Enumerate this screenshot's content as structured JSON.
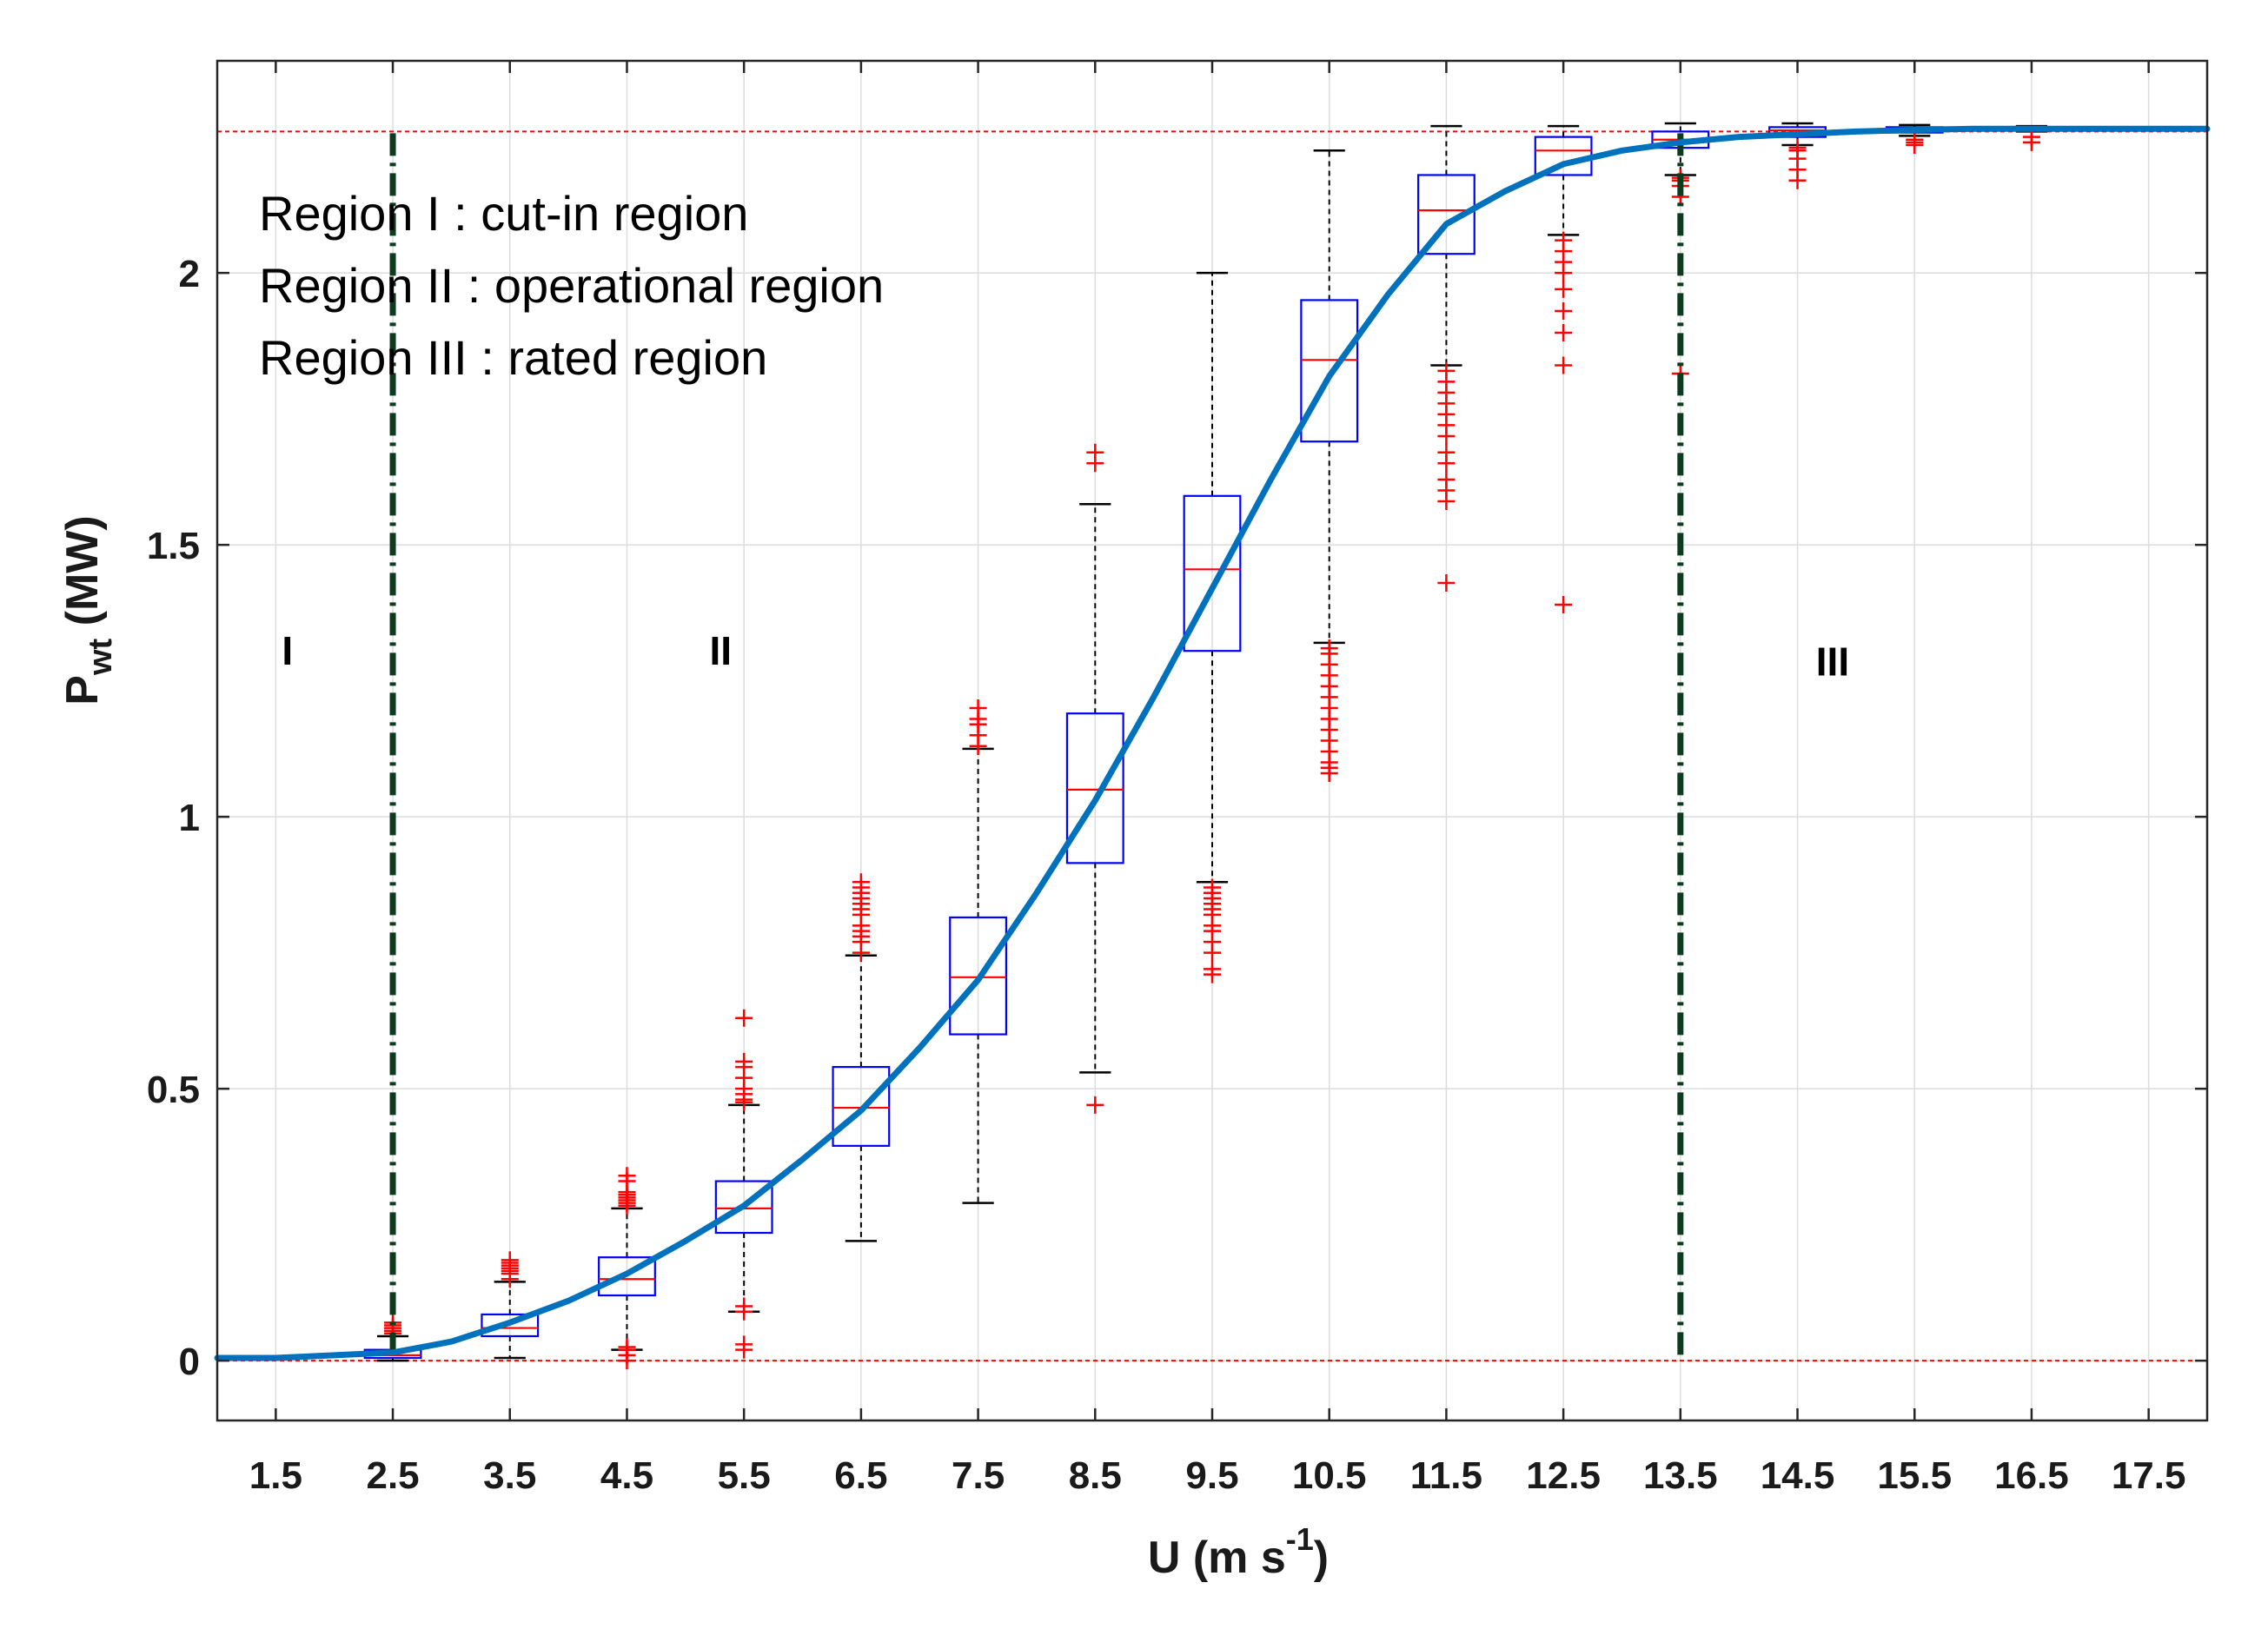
{
  "chart_data": {
    "type": "box",
    "xlabel": {
      "main": "U (m s",
      "sup": "-1",
      "close": ")"
    },
    "ylabel": {
      "main": "P",
      "sub": "wt",
      "rest": " (MW)"
    },
    "xlim": [
      1.0,
      18.0
    ],
    "ylim": [
      -0.11,
      2.39
    ],
    "x_ticks": [
      "1.5",
      "2.5",
      "3.5",
      "4.5",
      "5.5",
      "6.5",
      "7.5",
      "8.5",
      "9.5",
      "10.5",
      "11.5",
      "12.5",
      "13.5",
      "14.5",
      "15.5",
      "16.5",
      "17.5"
    ],
    "y_ticks": [
      "0",
      "0.5",
      "1",
      "1.5",
      "2"
    ],
    "rated_power": 2.26,
    "zero_line": 0,
    "region_boundaries": [
      2.5,
      13.5
    ],
    "regions": [
      {
        "label": "I",
        "x": 1.6,
        "y": 1.28
      },
      {
        "label": "II",
        "x": 5.3,
        "y": 1.28
      },
      {
        "label": "III",
        "x": 14.8,
        "y": 1.26
      }
    ],
    "legend_lines": [
      "Region I : cut-in region",
      "Region II : operational region",
      "Region III : rated region"
    ],
    "boxes": [
      {
        "x": 2.5,
        "q1": 0.005,
        "median": 0.01,
        "q3": 0.02,
        "whisker_low": 0.0,
        "whisker_high": 0.045,
        "outliers": [
          0.05,
          0.055,
          0.06,
          0.065,
          0.07
        ]
      },
      {
        "x": 3.5,
        "q1": 0.045,
        "median": 0.06,
        "q3": 0.085,
        "whisker_low": 0.005,
        "whisker_high": 0.145,
        "outliers": [
          0.15,
          0.16,
          0.165,
          0.17,
          0.175,
          0.18,
          0.185
        ]
      },
      {
        "x": 4.5,
        "q1": 0.12,
        "median": 0.15,
        "q3": 0.19,
        "whisker_low": 0.02,
        "whisker_high": 0.28,
        "outliers": [
          0.0,
          0.01,
          0.02,
          0.025,
          0.285,
          0.29,
          0.295,
          0.3,
          0.305,
          0.31,
          0.33,
          0.34
        ]
      },
      {
        "x": 5.5,
        "q1": 0.235,
        "median": 0.28,
        "q3": 0.33,
        "whisker_low": 0.09,
        "whisker_high": 0.47,
        "outliers": [
          0.02,
          0.03,
          0.09,
          0.1,
          0.475,
          0.48,
          0.49,
          0.5,
          0.52,
          0.54,
          0.55,
          0.63
        ]
      },
      {
        "x": 6.5,
        "q1": 0.395,
        "median": 0.465,
        "q3": 0.54,
        "whisker_low": 0.22,
        "whisker_high": 0.745,
        "outliers": [
          0.75,
          0.77,
          0.78,
          0.79,
          0.8,
          0.82,
          0.83,
          0.84,
          0.85,
          0.86,
          0.87,
          0.88
        ]
      },
      {
        "x": 7.5,
        "q1": 0.6,
        "median": 0.705,
        "q3": 0.815,
        "whisker_low": 0.29,
        "whisker_high": 1.125,
        "outliers": [
          1.13,
          1.15,
          1.17,
          1.18,
          1.2
        ]
      },
      {
        "x": 8.5,
        "q1": 0.915,
        "median": 1.05,
        "q3": 1.19,
        "whisker_low": 0.53,
        "whisker_high": 1.575,
        "outliers": [
          0.47,
          1.65,
          1.67
        ]
      },
      {
        "x": 9.5,
        "q1": 1.305,
        "median": 1.455,
        "q3": 1.59,
        "whisker_low": 0.88,
        "whisker_high": 2.0,
        "outliers": [
          0.71,
          0.72,
          0.75,
          0.77,
          0.79,
          0.8,
          0.82,
          0.83,
          0.84,
          0.85,
          0.86,
          0.87
        ]
      },
      {
        "x": 10.5,
        "q1": 1.69,
        "median": 1.84,
        "q3": 1.95,
        "whisker_low": 1.32,
        "whisker_high": 2.225,
        "outliers": [
          1.08,
          1.09,
          1.1,
          1.12,
          1.14,
          1.16,
          1.18,
          1.2,
          1.22,
          1.24,
          1.26,
          1.28,
          1.3,
          1.31
        ]
      },
      {
        "x": 11.5,
        "q1": 2.035,
        "median": 2.115,
        "q3": 2.18,
        "whisker_low": 1.83,
        "whisker_high": 2.27,
        "outliers": [
          1.43,
          1.58,
          1.6,
          1.62,
          1.65,
          1.67,
          1.7,
          1.72,
          1.74,
          1.76,
          1.78,
          1.8,
          1.82
        ]
      },
      {
        "x": 12.5,
        "q1": 2.18,
        "median": 2.225,
        "q3": 2.25,
        "whisker_low": 2.07,
        "whisker_high": 2.27,
        "outliers": [
          1.39,
          1.83,
          1.89,
          1.93,
          1.97,
          2.0,
          2.02,
          2.04,
          2.06
        ]
      },
      {
        "x": 13.5,
        "q1": 2.23,
        "median": 2.245,
        "q3": 2.26,
        "whisker_low": 2.18,
        "whisker_high": 2.275,
        "outliers": [
          1.815,
          2.14,
          2.16,
          2.17,
          2.175
        ]
      },
      {
        "x": 14.5,
        "q1": 2.25,
        "median": 2.262,
        "q3": 2.268,
        "whisker_low": 2.235,
        "whisker_high": 2.275,
        "outliers": [
          2.17,
          2.19,
          2.21,
          2.225,
          2.23
        ]
      },
      {
        "x": 15.5,
        "q1": 2.258,
        "median": 2.263,
        "q3": 2.268,
        "whisker_low": 2.252,
        "whisker_high": 2.272,
        "outliers": [
          2.235,
          2.24,
          2.245
        ]
      },
      {
        "x": 16.5,
        "q1": 2.262,
        "median": 2.265,
        "q3": 2.268,
        "whisker_low": 2.26,
        "whisker_high": 2.27,
        "outliers": [
          2.24,
          2.25
        ]
      }
    ],
    "curve": {
      "x": [
        1.0,
        1.5,
        2.0,
        2.5,
        3.0,
        3.5,
        4.0,
        4.5,
        5.0,
        5.5,
        6.0,
        6.5,
        7.0,
        7.5,
        8.0,
        8.5,
        9.0,
        9.5,
        10.0,
        10.5,
        11.0,
        11.5,
        12.0,
        12.5,
        13.0,
        13.5,
        14.0,
        14.5,
        15.0,
        15.5,
        16.0,
        16.5,
        17.0,
        17.5,
        18.0
      ],
      "y": [
        0.005,
        0.005,
        0.01,
        0.015,
        0.035,
        0.07,
        0.11,
        0.16,
        0.22,
        0.285,
        0.37,
        0.46,
        0.575,
        0.7,
        0.86,
        1.03,
        1.22,
        1.42,
        1.62,
        1.81,
        1.96,
        2.09,
        2.15,
        2.2,
        2.225,
        2.24,
        2.25,
        2.255,
        2.26,
        2.263,
        2.265,
        2.265,
        2.265,
        2.265,
        2.265
      ]
    },
    "colors": {
      "box": "#0000ff",
      "median": "#ff0000",
      "outlier": "#ff0000",
      "whisker": "#000000",
      "curve": "#0072bd",
      "boundary": "#0d3b1e",
      "reference": "#ff0000",
      "grid": "#dcdcdc",
      "axis": "#262626"
    }
  }
}
